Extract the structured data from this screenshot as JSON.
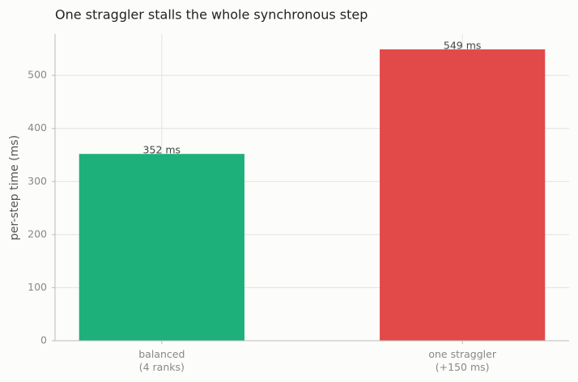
{
  "chart_data": {
    "type": "bar",
    "title": "One straggler stalls the whole synchronous step",
    "y_label": "per-step time (ms)",
    "categories": [
      [
        "balanced",
        "(4 ranks)"
      ],
      [
        "one straggler",
        "(+150 ms)"
      ]
    ],
    "values": [
      352,
      549
    ],
    "value_labels": [
      "352 ms",
      "549 ms"
    ],
    "colors": [
      "#1db07a",
      "#e24a4a"
    ],
    "ylim": [
      0,
      578
    ],
    "yticks": [
      0,
      100,
      200,
      300,
      400,
      500
    ],
    "grid": true
  }
}
